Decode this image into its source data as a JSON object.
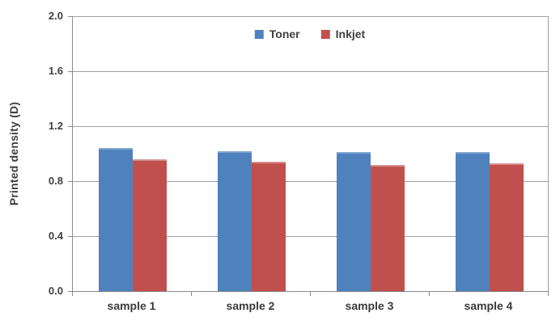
{
  "chart_data": {
    "type": "bar",
    "title": "",
    "xlabel": "",
    "ylabel": "Printed density (D)",
    "categories": [
      "sample 1",
      "sample 2",
      "sample 3",
      "sample 4"
    ],
    "series": [
      {
        "name": "Toner",
        "color": "#4F81BD",
        "highlight": "#7FA5D2",
        "values": [
          1.04,
          1.02,
          1.01,
          1.01
        ]
      },
      {
        "name": "Inkjet",
        "color": "#C0504D",
        "highlight": "#D68B89",
        "values": [
          0.96,
          0.94,
          0.92,
          0.93
        ]
      }
    ],
    "ylim": [
      0.0,
      2.0
    ],
    "ytick_step": 0.4,
    "ytick_labels": [
      "2.0",
      "1.6",
      "1.2",
      "0.8",
      "0.4",
      "0.0"
    ],
    "grid": true,
    "legend_position": "top-center"
  },
  "colors": {
    "background": "#ffffff",
    "gridline": "#a0a0a0",
    "axis": "#8a8a8a",
    "text": "#3f3f3f"
  }
}
